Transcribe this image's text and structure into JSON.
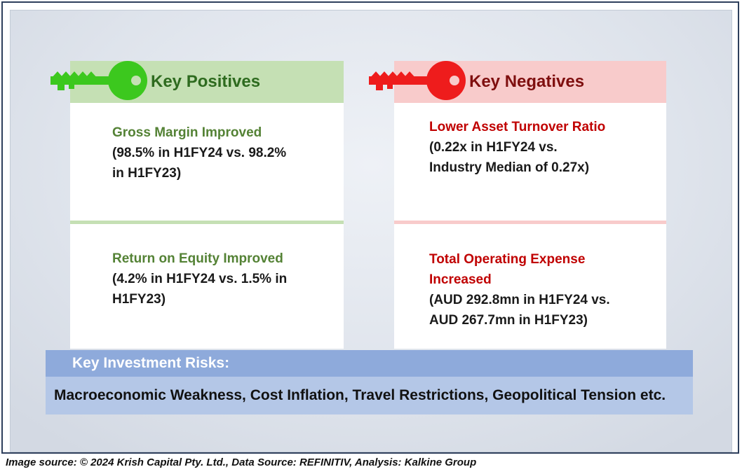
{
  "positives": {
    "header": "Key Positives",
    "items": [
      {
        "title": "Gross Margin Improved",
        "detail_line1": "(98.5% in H1FY24 vs. 98.2%",
        "detail_line2": "in H1FY23)"
      },
      {
        "title": "Return on Equity Improved",
        "detail_line1": "(4.2% in H1FY24 vs. 1.5% in",
        "detail_line2": "H1FY23)"
      }
    ]
  },
  "negatives": {
    "header": "Key Negatives",
    "items": [
      {
        "title": "Lower Asset Turnover Ratio",
        "detail_line1": "(0.22x in H1FY24 vs.",
        "detail_line2": "Industry Median of 0.27x)"
      },
      {
        "title_line1": "Total Operating Expense",
        "title_line2": "Increased",
        "detail_line1": "(AUD 292.8mn in H1FY24 vs.",
        "detail_line2": "AUD 267.7mn in H1FY23)"
      }
    ]
  },
  "risks": {
    "header": "Key Investment Risks:",
    "body": "Macroeconomic Weakness, Cost Inflation, Travel Restrictions, Geopolitical Tension etc."
  },
  "source": "Image source: © 2024 Krish Capital Pty. Ltd., Data Source: REFINITIV, Analysis: Kalkine Group",
  "colors": {
    "positive_accent": "#548235",
    "positive_bg": "#c5e0b4",
    "negative_accent": "#c00000",
    "negative_bg": "#f8cbcb",
    "risk_header_bg": "#8eaadb",
    "risk_body_bg": "#b4c7e7"
  },
  "icons": {
    "positives": "green-key-icon",
    "negatives": "red-key-icon"
  }
}
